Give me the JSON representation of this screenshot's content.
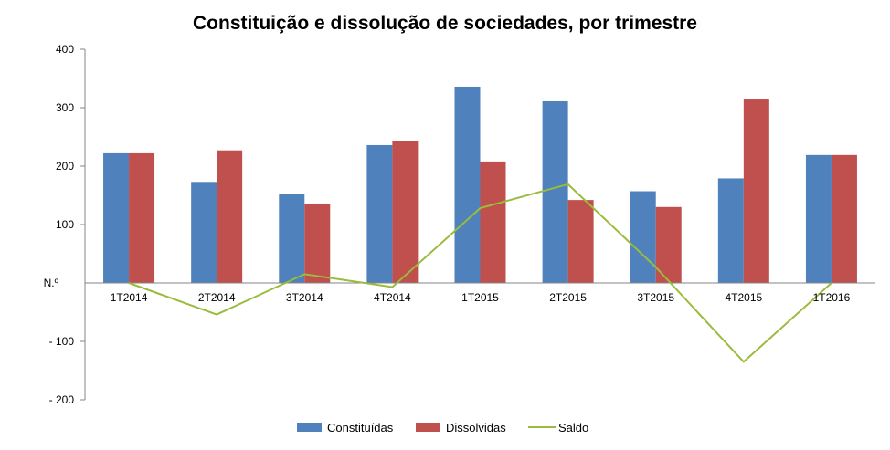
{
  "chart_data": {
    "type": "bar",
    "title": "Constituição e dissolução de sociedades, por trimestre",
    "ylabel": "N.º",
    "xlabel": "",
    "ylim": [
      -200,
      400
    ],
    "yticks": [
      400,
      300,
      200,
      100,
      -100,
      -200
    ],
    "yticklabels": [
      "400",
      "300",
      "200",
      "100",
      "- 100",
      "- 200"
    ],
    "grid": false,
    "legend_position": "bottom",
    "categories": [
      "1T2014",
      "2T2014",
      "3T2014",
      "4T2014",
      "1T2015",
      "2T2015",
      "3T2015",
      "4T2015",
      "1T2016"
    ],
    "series": [
      {
        "name": "Constituídas",
        "kind": "bar",
        "color": "#4f81bd",
        "values": [
          222,
          173,
          152,
          236,
          336,
          311,
          157,
          179,
          219
        ]
      },
      {
        "name": "Dissolvidas",
        "kind": "bar",
        "color": "#c0504d",
        "values": [
          222,
          227,
          136,
          243,
          208,
          142,
          130,
          314,
          219
        ]
      },
      {
        "name": "Saldo",
        "kind": "line",
        "color": "#9bbb3c",
        "values": [
          0,
          -54,
          15,
          -7,
          128,
          169,
          27,
          -135,
          0
        ]
      }
    ]
  }
}
